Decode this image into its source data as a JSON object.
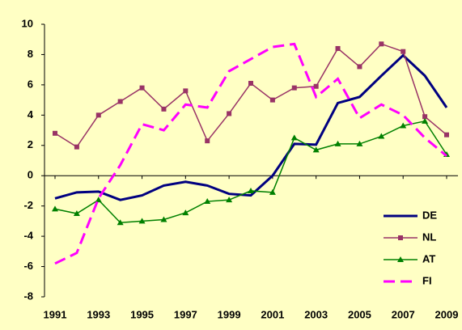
{
  "chart_data": {
    "type": "line",
    "x": [
      1991,
      1992,
      1993,
      1994,
      1995,
      1996,
      1997,
      1998,
      1999,
      2000,
      2001,
      2002,
      2003,
      2004,
      2005,
      2006,
      2007,
      2008,
      2009
    ],
    "series": [
      {
        "name": "DE",
        "color": "#000080",
        "values": [
          -1.5,
          -1.1,
          -1.05,
          -1.6,
          -1.3,
          -0.65,
          -0.4,
          -0.65,
          -1.2,
          -1.3,
          0.0,
          2.1,
          2.05,
          4.8,
          5.2,
          6.6,
          7.95,
          6.6,
          4.5
        ]
      },
      {
        "name": "NL",
        "color": "#993366",
        "marker": "square",
        "values": [
          2.8,
          1.9,
          4.0,
          4.9,
          5.8,
          4.4,
          5.6,
          2.3,
          4.1,
          6.1,
          5.0,
          5.8,
          5.9,
          8.4,
          7.2,
          8.7,
          8.2,
          3.9,
          2.7
        ]
      },
      {
        "name": "AT",
        "color": "#008000",
        "marker": "triangle",
        "values": [
          -2.2,
          -2.5,
          -1.6,
          -3.1,
          -3.0,
          -2.9,
          -2.45,
          -1.7,
          -1.6,
          -1.0,
          -1.1,
          2.5,
          1.7,
          2.1,
          2.1,
          2.6,
          3.3,
          3.6,
          1.4
        ]
      },
      {
        "name": "FI",
        "color": "#ff00ff",
        "dashed": true,
        "values": [
          -5.8,
          -5.1,
          -1.5,
          0.7,
          3.4,
          3.0,
          4.7,
          4.5,
          6.9,
          7.7,
          8.5,
          8.7,
          5.2,
          6.4,
          3.8,
          4.7,
          4.0,
          2.5,
          1.3
        ]
      }
    ],
    "xlim": [
      1991,
      2009
    ],
    "xticks": [
      1991,
      1993,
      1995,
      1997,
      1999,
      2001,
      2003,
      2005,
      2007,
      2009
    ],
    "ylim": [
      -8,
      10
    ],
    "yticks": [
      -8,
      -6,
      -4,
      -2,
      0,
      2,
      4,
      6,
      8,
      10
    ],
    "legend": "lower right"
  }
}
